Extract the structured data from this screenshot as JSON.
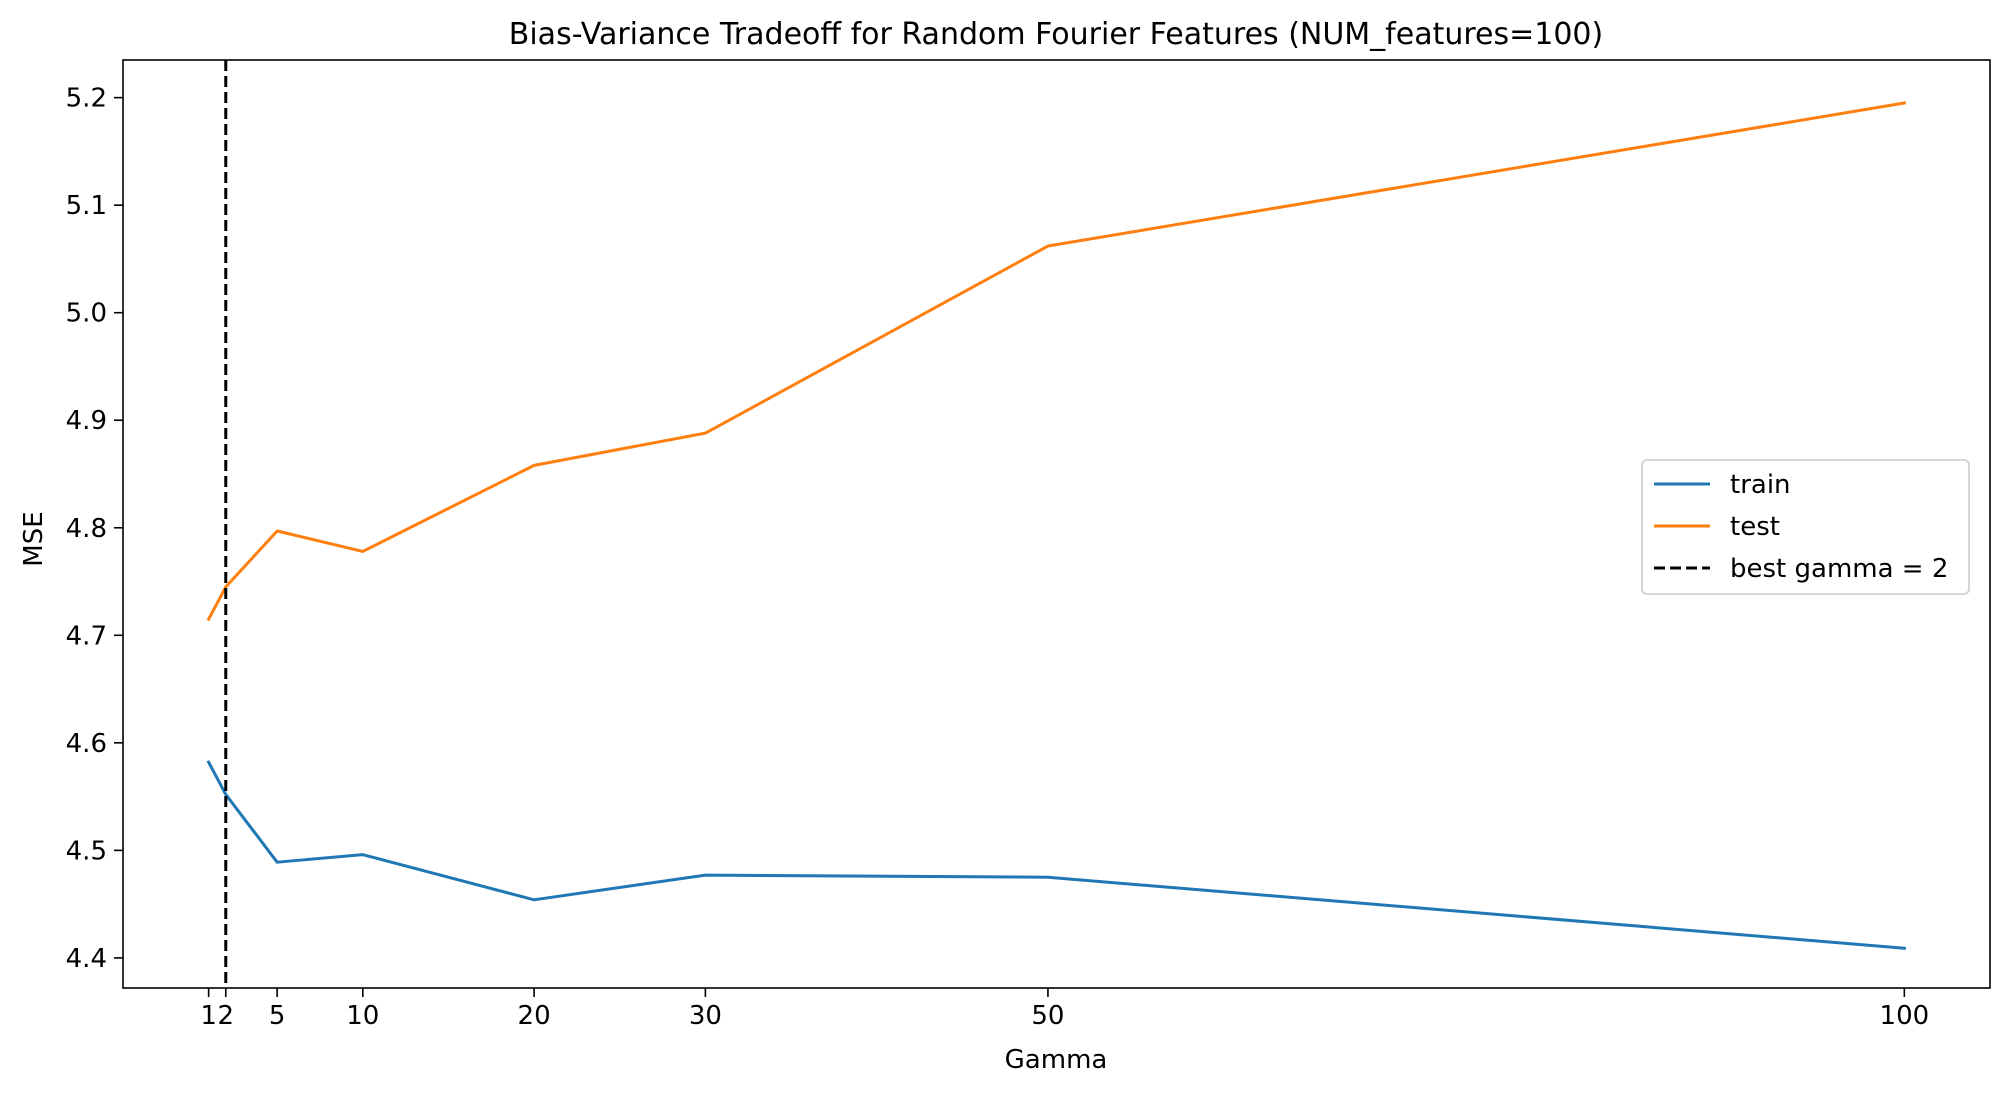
{
  "chart_data": {
    "type": "line",
    "title": "Bias-Variance Tradeoff for Random Fourier Features (NUM_features=100)",
    "xlabel": "Gamma",
    "ylabel": "MSE",
    "x": [
      1,
      2,
      5,
      10,
      20,
      30,
      50,
      100
    ],
    "xticks": [
      1,
      2,
      5,
      10,
      20,
      30,
      50,
      100
    ],
    "xlim": [
      -4,
      105
    ],
    "yticks": [
      "4.4",
      "4.5",
      "4.6",
      "4.7",
      "4.8",
      "4.9",
      "5.0",
      "5.1",
      "5.2"
    ],
    "ylim": [
      4.372,
      5.235
    ],
    "grid": false,
    "legend_position": "center-right",
    "series": [
      {
        "name": "train",
        "color": "#1f77b4",
        "style": "solid",
        "values": [
          4.582,
          4.552,
          4.489,
          4.496,
          4.454,
          4.477,
          4.475,
          4.409
        ]
      },
      {
        "name": "test",
        "color": "#ff7f0e",
        "style": "solid",
        "values": [
          4.715,
          4.745,
          4.797,
          4.778,
          4.858,
          4.888,
          5.062,
          5.195
        ]
      }
    ],
    "vline": {
      "x": 2,
      "label": "best gamma = 2",
      "color": "#000000",
      "style": "dashed"
    }
  }
}
